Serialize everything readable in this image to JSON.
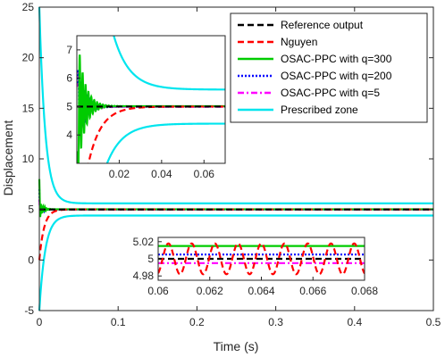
{
  "chart_data": {
    "type": "line",
    "xlabel": "Time (s)",
    "ylabel": "Displacement",
    "xlim": [
      0,
      0.5
    ],
    "ylim": [
      -5,
      25
    ],
    "xticks": [
      "0",
      "0.1",
      "0.2",
      "0.3",
      "0.4",
      "0.5"
    ],
    "yticks": [
      "-5",
      "0",
      "5",
      "10",
      "15",
      "20",
      "25"
    ],
    "legend_position": "top-right",
    "series": [
      {
        "name": "Reference output",
        "color": "#000000",
        "style": "dashed",
        "final_value": 5.0
      },
      {
        "name": "Nguyen",
        "color": "#ff0000",
        "style": "dashed",
        "final_value": 5.0,
        "start_value": 0
      },
      {
        "name": "OSAC-PPC with q=300",
        "color": "#00cc00",
        "style": "solid",
        "final_value": 5.015,
        "peak_value": 8
      },
      {
        "name": "OSAC-PPC with q=200",
        "color": "#0000ff",
        "style": "dotted",
        "final_value": 5.005,
        "peak_value": 7
      },
      {
        "name": "OSAC-PPC with q=5",
        "color": "#ff00ff",
        "style": "dashdot",
        "final_value": 4.995,
        "peak_value": 6
      },
      {
        "name": "Prescribed zone",
        "color": "#00e5ee",
        "style": "solid",
        "upper_start": 25,
        "upper_final": 5.6,
        "lower_start": -5,
        "lower_final": 4.4
      }
    ],
    "inset1": {
      "xlim": [
        0,
        0.07
      ],
      "ylim": [
        3,
        7.5
      ],
      "xticks": [
        "0.02",
        "0.04",
        "0.06"
      ],
      "yticks": [
        "4",
        "5",
        "6",
        "7"
      ]
    },
    "inset2": {
      "xlim": [
        0.06,
        0.068
      ],
      "ylim": [
        4.975,
        5.025
      ],
      "xticks": [
        "0.06",
        "0.062",
        "0.064",
        "0.066",
        "0.068"
      ],
      "yticks": [
        "4.98",
        "5",
        "5.02"
      ]
    }
  }
}
